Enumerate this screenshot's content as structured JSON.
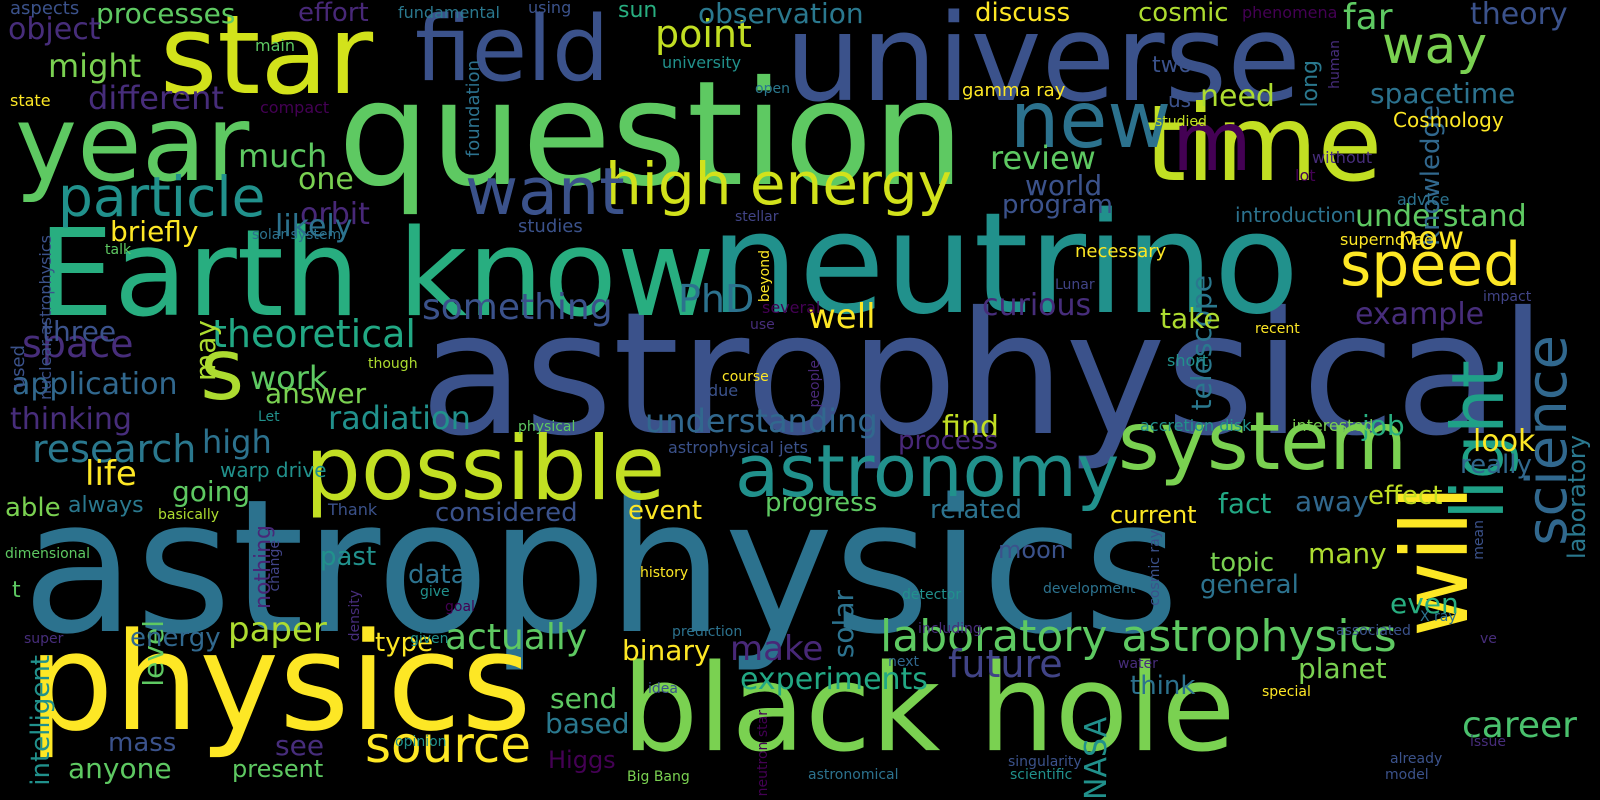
{
  "colors": {
    "background": "#000000",
    "palette": [
      "#440154",
      "#472d7b",
      "#3b528b",
      "#2c728e",
      "#21918c",
      "#28ae80",
      "#5ec962",
      "#addc30",
      "#fde725"
    ]
  },
  "words": [
    {
      "text": "astrophysics",
      "color": "#2c728e"
    },
    {
      "text": "astrophysical",
      "color": "#3b528b"
    },
    {
      "text": "question",
      "color": "#5ec962"
    },
    {
      "text": "neutrino",
      "color": "#21918c"
    },
    {
      "text": "universe",
      "color": "#3b528b"
    },
    {
      "text": "physics",
      "color": "#fde725"
    },
    {
      "text": "black hole",
      "color": "#7ad151"
    },
    {
      "text": "Earth know",
      "color": "#28ae80"
    },
    {
      "text": "star",
      "color": "#d2e21b"
    },
    {
      "text": "time",
      "color": "#c2df23"
    },
    {
      "text": "year",
      "color": "#5ec962"
    },
    {
      "text": "field",
      "color": "#3b528b"
    },
    {
      "text": "possible",
      "color": "#c2df23"
    },
    {
      "text": "will",
      "color": "#fde725"
    },
    {
      "text": "system",
      "color": "#7ad151"
    },
    {
      "text": "s",
      "color": "#addc30"
    },
    {
      "text": "astronomy",
      "color": "#21918c"
    },
    {
      "text": "light",
      "color": "#1fa187"
    },
    {
      "text": "m",
      "color": "#440154"
    },
    {
      "text": "new",
      "color": "#2c728e"
    },
    {
      "text": "high energy",
      "color": "#d2e21b"
    },
    {
      "text": "want",
      "color": "#3b528b"
    },
    {
      "text": "particle",
      "color": "#21918c"
    },
    {
      "text": "speed",
      "color": "#fde725"
    },
    {
      "text": "science",
      "color": "#31688e"
    },
    {
      "text": "laboratory astrophysics",
      "color": "#5ec962"
    },
    {
      "text": "source",
      "color": "#fde725"
    },
    {
      "text": "way",
      "color": "#7ad151"
    },
    {
      "text": "point",
      "color": "#c2df23"
    },
    {
      "text": "theoretical",
      "color": "#22a884"
    },
    {
      "text": "future",
      "color": "#414487"
    },
    {
      "text": "space",
      "color": "#472d7b"
    },
    {
      "text": "research",
      "color": "#2a788e"
    },
    {
      "text": "PhD",
      "color": "#2c728e"
    },
    {
      "text": "something",
      "color": "#3b528b"
    },
    {
      "text": "actually",
      "color": "#5ec962"
    },
    {
      "text": "paper",
      "color": "#addc30"
    },
    {
      "text": "make",
      "color": "#482878"
    },
    {
      "text": "career",
      "color": "#4ac16d"
    },
    {
      "text": "experiments",
      "color": "#22a884"
    },
    {
      "text": "understanding",
      "color": "#31688e"
    },
    {
      "text": "radiation",
      "color": "#21918c"
    },
    {
      "text": "curious",
      "color": "#472d7b"
    },
    {
      "text": "life",
      "color": "#fde725"
    },
    {
      "text": "well",
      "color": "#fde725"
    },
    {
      "text": "different",
      "color": "#472d7b"
    },
    {
      "text": "much",
      "color": "#5ec962"
    },
    {
      "text": "might",
      "color": "#7ad151"
    },
    {
      "text": "processes",
      "color": "#5ec962"
    },
    {
      "text": "object",
      "color": "#472d7b"
    },
    {
      "text": "observation",
      "color": "#2a788e"
    },
    {
      "text": "discuss",
      "color": "#fde725"
    },
    {
      "text": "cosmic",
      "color": "#addc30"
    },
    {
      "text": "far",
      "color": "#5ec962"
    },
    {
      "text": "theory",
      "color": "#3b528b"
    },
    {
      "text": "effort",
      "color": "#482878"
    },
    {
      "text": "spacetime",
      "color": "#2c728e"
    },
    {
      "text": "need",
      "color": "#addc30"
    },
    {
      "text": "review",
      "color": "#5ec962"
    },
    {
      "text": "world",
      "color": "#3b528b"
    },
    {
      "text": "program",
      "color": "#3b528b"
    },
    {
      "text": "understand",
      "color": "#5ec962"
    },
    {
      "text": "knowledge",
      "color": "#31688e"
    },
    {
      "text": "now",
      "color": "#fde725"
    },
    {
      "text": "telescope",
      "color": "#2a788e"
    },
    {
      "text": "one",
      "color": "#7ad151"
    },
    {
      "text": "orbit",
      "color": "#482878"
    },
    {
      "text": "likely",
      "color": "#2c728e"
    },
    {
      "text": "briefly",
      "color": "#fde725"
    },
    {
      "text": "example",
      "color": "#472d7b"
    },
    {
      "text": "take",
      "color": "#addc30"
    },
    {
      "text": "three",
      "color": "#3b528b"
    },
    {
      "text": "may",
      "color": "#addc30"
    },
    {
      "text": "application",
      "color": "#31688e"
    },
    {
      "text": "work",
      "color": "#5ec962"
    },
    {
      "text": "answer",
      "color": "#7ad151"
    },
    {
      "text": "thinking",
      "color": "#472d7b"
    },
    {
      "text": "high",
      "color": "#2c728e"
    },
    {
      "text": "going",
      "color": "#5ec962"
    },
    {
      "text": "find",
      "color": "#c2df23"
    },
    {
      "text": "process",
      "color": "#482878"
    },
    {
      "text": "job",
      "color": "#28ae80"
    },
    {
      "text": "look",
      "color": "#fde725"
    },
    {
      "text": "really",
      "color": "#31688e"
    },
    {
      "text": "laboratory",
      "color": "#2a788e"
    },
    {
      "text": "able",
      "color": "#7ad151"
    },
    {
      "text": "always",
      "color": "#2a788e"
    },
    {
      "text": "considered",
      "color": "#3b528b"
    },
    {
      "text": "event",
      "color": "#fde725"
    },
    {
      "text": "progress",
      "color": "#5ec962"
    },
    {
      "text": "related",
      "color": "#2c728e"
    },
    {
      "text": "current",
      "color": "#fde725"
    },
    {
      "text": "fact",
      "color": "#22a884"
    },
    {
      "text": "away",
      "color": "#31688e"
    },
    {
      "text": "effect",
      "color": "#c2df23"
    },
    {
      "text": "level",
      "color": "#5ec962"
    },
    {
      "text": "past",
      "color": "#21918c"
    },
    {
      "text": "data",
      "color": "#2c728e"
    },
    {
      "text": "moon",
      "color": "#3b528b"
    },
    {
      "text": "topic",
      "color": "#7ad151"
    },
    {
      "text": "general",
      "color": "#2c728e"
    },
    {
      "text": "many",
      "color": "#addc30"
    },
    {
      "text": "even",
      "color": "#28ae80"
    },
    {
      "text": "energy",
      "color": "#31688e"
    },
    {
      "text": "type",
      "color": "#fde725"
    },
    {
      "text": "binary",
      "color": "#fde725"
    },
    {
      "text": "solar",
      "color": "#2c728e"
    },
    {
      "text": "planet",
      "color": "#7ad151"
    },
    {
      "text": "think",
      "color": "#2c728e"
    },
    {
      "text": "NASA",
      "color": "#21918c"
    },
    {
      "text": "send",
      "color": "#5ec962"
    },
    {
      "text": "based",
      "color": "#2a788e"
    },
    {
      "text": "mass",
      "color": "#3b528b"
    },
    {
      "text": "anyone",
      "color": "#5ec962"
    },
    {
      "text": "present",
      "color": "#5ec962"
    },
    {
      "text": "see",
      "color": "#472d7b"
    },
    {
      "text": "Higgs",
      "color": "#440154"
    },
    {
      "text": "nothing",
      "color": "#482878"
    },
    {
      "text": "intelligent",
      "color": "#21918c"
    },
    {
      "text": "t",
      "color": "#5ec962"
    },
    {
      "text": "aspects",
      "color": "#3b528b"
    },
    {
      "text": "fundamental",
      "color": "#2a788e"
    },
    {
      "text": "using",
      "color": "#3b528b"
    },
    {
      "text": "sun",
      "color": "#28ae80"
    },
    {
      "text": "phenomena",
      "color": "#440154"
    },
    {
      "text": "main",
      "color": "#5ec962"
    },
    {
      "text": "university",
      "color": "#21918c"
    },
    {
      "text": "two",
      "color": "#3b528b"
    },
    {
      "text": "state",
      "color": "#fde725"
    },
    {
      "text": "compact",
      "color": "#440154"
    },
    {
      "text": "open",
      "color": "#2a788e"
    },
    {
      "text": "gamma ray",
      "color": "#fde725"
    },
    {
      "text": "foundation",
      "color": "#2c728e"
    },
    {
      "text": "us",
      "color": "#3b528b"
    },
    {
      "text": "long",
      "color": "#2a788e"
    },
    {
      "text": "human",
      "color": "#472d7b"
    },
    {
      "text": "studied",
      "color": "#c2df23"
    },
    {
      "text": "Cosmology",
      "color": "#fde725"
    },
    {
      "text": "without",
      "color": "#472d7b"
    },
    {
      "text": "lot",
      "color": "#440154"
    },
    {
      "text": "advice",
      "color": "#2c728e"
    },
    {
      "text": "stellar",
      "color": "#414487"
    },
    {
      "text": "introduction",
      "color": "#2c728e"
    },
    {
      "text": "studies",
      "color": "#3b528b"
    },
    {
      "text": "solar system",
      "color": "#2c728e"
    },
    {
      "text": "talk",
      "color": "#5ec962"
    },
    {
      "text": "supernovae",
      "color": "#fde725"
    },
    {
      "text": "beyond",
      "color": "#fde725"
    },
    {
      "text": "necessary",
      "color": "#fde725"
    },
    {
      "text": "Lunar",
      "color": "#414487"
    },
    {
      "text": "impact",
      "color": "#414487"
    },
    {
      "text": "several",
      "color": "#440154"
    },
    {
      "text": "recent",
      "color": "#fde725"
    },
    {
      "text": "use",
      "color": "#472d7b"
    },
    {
      "text": "used",
      "color": "#3b528b"
    },
    {
      "text": "nuclear astrophysics",
      "color": "#3b528b"
    },
    {
      "text": "though",
      "color": "#addc30"
    },
    {
      "text": "people",
      "color": "#482878"
    },
    {
      "text": "short",
      "color": "#21918c"
    },
    {
      "text": "course",
      "color": "#fde725"
    },
    {
      "text": "due",
      "color": "#3b528b"
    },
    {
      "text": "Let",
      "color": "#21918c"
    },
    {
      "text": "physical",
      "color": "#5ec962"
    },
    {
      "text": "accretion disk",
      "color": "#21918c"
    },
    {
      "text": "interested",
      "color": "#7ad151"
    },
    {
      "text": "astrophysical jets",
      "color": "#3b528b"
    },
    {
      "text": "warp drive",
      "color": "#21918c"
    },
    {
      "text": "Thank",
      "color": "#3b528b"
    },
    {
      "text": "basically",
      "color": "#addc30"
    },
    {
      "text": "dimensional",
      "color": "#5ec962"
    },
    {
      "text": "change",
      "color": "#414487"
    },
    {
      "text": "history",
      "color": "#fde725"
    },
    {
      "text": "give",
      "color": "#21918c"
    },
    {
      "text": "goal",
      "color": "#440154"
    },
    {
      "text": "density",
      "color": "#472d7b"
    },
    {
      "text": "given",
      "color": "#21918c"
    },
    {
      "text": "detector",
      "color": "#21918c"
    },
    {
      "text": "cosmic ray",
      "color": "#3b528b"
    },
    {
      "text": "development",
      "color": "#2c728e"
    },
    {
      "text": "mean",
      "color": "#3b528b"
    },
    {
      "text": "X ray",
      "color": "#2c728e"
    },
    {
      "text": "super",
      "color": "#472d7b"
    },
    {
      "text": "prediction",
      "color": "#2c728e"
    },
    {
      "text": "including",
      "color": "#472d7b"
    },
    {
      "text": "ve",
      "color": "#472d7b"
    },
    {
      "text": "next",
      "color": "#31688e"
    },
    {
      "text": "water",
      "color": "#472d7b"
    },
    {
      "text": "idea",
      "color": "#3b528b"
    },
    {
      "text": "special",
      "color": "#fde725"
    },
    {
      "text": "neutron star",
      "color": "#440154"
    },
    {
      "text": "issue",
      "color": "#472d7b"
    },
    {
      "text": "already",
      "color": "#3b528b"
    },
    {
      "text": "opinion",
      "color": "#21918c"
    },
    {
      "text": "singularity",
      "color": "#3b528b"
    },
    {
      "text": "model",
      "color": "#3b528b"
    },
    {
      "text": "Big Bang",
      "color": "#7ad151"
    },
    {
      "text": "astronomical",
      "color": "#2c728e"
    },
    {
      "text": "scientific",
      "color": "#21918c"
    },
    {
      "text": "associated",
      "color": "#3b528b"
    }
  ]
}
